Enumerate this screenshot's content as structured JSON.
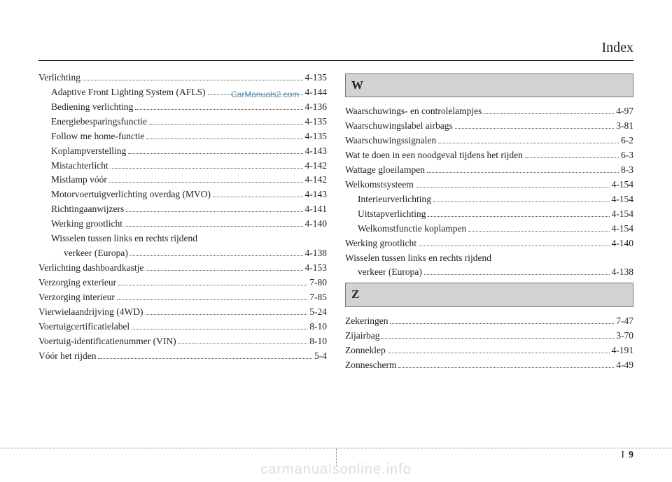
{
  "header": {
    "title": "Index"
  },
  "watermarks": {
    "cm2": "CarManuals2.com",
    "footer": "carmanualsonline.info"
  },
  "page_number": {
    "section": "I",
    "number": "9"
  },
  "left_column": [
    {
      "label": "Verlichting",
      "page": "4-135",
      "indent": 0
    },
    {
      "label": "Adaptive Front Lighting System (AFLS)",
      "page": "4-144",
      "indent": 1
    },
    {
      "label": "Bediening verlichting",
      "page": "4-136",
      "indent": 1
    },
    {
      "label": "Energiebesparingsfunctie",
      "page": "4-135",
      "indent": 1
    },
    {
      "label": "Follow me home-functie",
      "page": "4-135",
      "indent": 1
    },
    {
      "label": "Koplampverstelling",
      "page": "4-143",
      "indent": 1
    },
    {
      "label": "Mistachterlicht",
      "page": "4-142",
      "indent": 1
    },
    {
      "label": "Mistlamp vóór",
      "page": "4-142",
      "indent": 1
    },
    {
      "label": "Motorvoertuigverlichting overdag (MVO)",
      "page": "4-143",
      "indent": 1
    },
    {
      "label": "Richtingaanwijzers",
      "page": "4-141",
      "indent": 1
    },
    {
      "label": "Werking grootlicht",
      "page": "4-140",
      "indent": 1
    },
    {
      "label": "Wisselen tussen links en rechts rijdend",
      "page": "",
      "indent": 1,
      "nowrap_no_page": true
    },
    {
      "label": "verkeer (Europa)",
      "page": "4-138",
      "indent": 2,
      "continuation": true
    },
    {
      "label": "Verlichting dashboardkastje",
      "page": "4-153",
      "indent": 0
    },
    {
      "label": "Verzorging exterieur",
      "page": "7-80",
      "indent": 0
    },
    {
      "label": "Verzorging interieur",
      "page": "7-85",
      "indent": 0
    },
    {
      "label": "Vierwielaandrijving (4WD)",
      "page": "5-24",
      "indent": 0
    },
    {
      "label": "Voertuigcertificatielabel",
      "page": "8-10",
      "indent": 0
    },
    {
      "label": "Voertuig-identificatienummer (VIN)",
      "page": "8-10",
      "indent": 0
    },
    {
      "label": "Vóór het rijden",
      "page": "5-4",
      "indent": 0
    }
  ],
  "right_sections": [
    {
      "letter": "W",
      "entries": [
        {
          "label": "Waarschuwings- en controlelampjes",
          "page": "4-97",
          "indent": 0
        },
        {
          "label": "Waarschuwingslabel airbags",
          "page": "3-81",
          "indent": 0
        },
        {
          "label": "Waarschuwingssignalen",
          "page": "6-2",
          "indent": 0
        },
        {
          "label": "Wat te doen in een noodgeval tijdens het rijden",
          "page": "6-3",
          "indent": 0
        },
        {
          "label": "Wattage gloeilampen",
          "page": "8-3",
          "indent": 0
        },
        {
          "label": "Welkomstsysteem",
          "page": "4-154",
          "indent": 0
        },
        {
          "label": "Interieurverlichting",
          "page": "4-154",
          "indent": 1
        },
        {
          "label": "Uitstapverlichting",
          "page": "4-154",
          "indent": 1
        },
        {
          "label": "Welkomstfunctie koplampen",
          "page": "4-154",
          "indent": 1
        },
        {
          "label": "Werking grootlicht",
          "page": "4-140",
          "indent": 0
        },
        {
          "label": "Wisselen tussen links en rechts rijdend",
          "page": "",
          "indent": 0,
          "nowrap_no_page": true
        },
        {
          "label": "verkeer (Europa)",
          "page": "4-138",
          "indent": 1,
          "continuation": true
        }
      ]
    },
    {
      "letter": "Z",
      "entries": [
        {
          "label": "Zekeringen",
          "page": "7-47",
          "indent": 0
        },
        {
          "label": "Zijairbag",
          "page": "3-70",
          "indent": 0
        },
        {
          "label": "Zonneklep",
          "page": "4-191",
          "indent": 0
        },
        {
          "label": "Zonnescherm",
          "page": "4-49",
          "indent": 0
        }
      ]
    }
  ]
}
